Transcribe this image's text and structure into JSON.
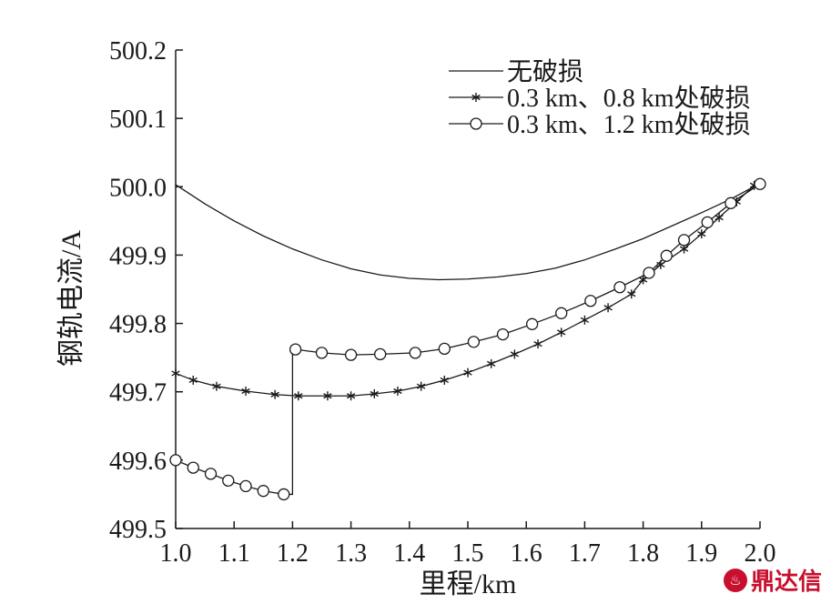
{
  "chart_data": {
    "type": "line",
    "title": "",
    "xlabel": "里程/km",
    "ylabel": "钢轨电流/A",
    "xlim": [
      1.0,
      2.0
    ],
    "ylim": [
      499.5,
      500.2
    ],
    "xticks": [
      "1.0",
      "1.1",
      "1.2",
      "1.3",
      "1.4",
      "1.5",
      "1.6",
      "1.7",
      "1.8",
      "1.9",
      "2.0"
    ],
    "yticks": [
      "499.5",
      "499.6",
      "499.7",
      "499.8",
      "499.9",
      "500.0",
      "500.1",
      "500.2"
    ],
    "legend_position": "top-right",
    "grid": false,
    "series": [
      {
        "name": "无破损",
        "marker": "none",
        "x": [
          1.0,
          1.05,
          1.1,
          1.15,
          1.2,
          1.25,
          1.3,
          1.35,
          1.4,
          1.45,
          1.5,
          1.55,
          1.6,
          1.65,
          1.7,
          1.75,
          1.8,
          1.85,
          1.9,
          1.95,
          2.0
        ],
        "y": [
          500.003,
          499.975,
          499.95,
          499.928,
          499.909,
          499.893,
          499.88,
          499.871,
          499.866,
          499.864,
          499.865,
          499.868,
          499.873,
          499.881,
          499.893,
          499.908,
          499.924,
          499.943,
          499.962,
          499.982,
          500.005
        ]
      },
      {
        "name": "0.3 km、0.8 km处破损",
        "marker": "asterisk",
        "x": [
          1.0,
          1.03,
          1.07,
          1.12,
          1.17,
          1.21,
          1.26,
          1.3,
          1.34,
          1.38,
          1.42,
          1.46,
          1.5,
          1.54,
          1.58,
          1.62,
          1.66,
          1.7,
          1.74,
          1.78,
          1.8,
          1.83,
          1.87,
          1.9,
          1.93,
          1.96,
          1.99,
          2.0
        ],
        "y": [
          499.727,
          499.717,
          499.708,
          499.701,
          499.696,
          499.694,
          499.694,
          499.694,
          499.697,
          499.701,
          499.708,
          499.717,
          499.728,
          499.741,
          499.755,
          499.77,
          499.787,
          499.805,
          499.823,
          499.843,
          499.864,
          499.886,
          499.909,
          499.931,
          499.955,
          499.978,
          500.002,
          500.005
        ]
      },
      {
        "name": "0.3 km、1.2 km处破损",
        "marker": "circle",
        "x": [
          1.0,
          1.03,
          1.06,
          1.09,
          1.12,
          1.15,
          1.185,
          1.205,
          1.25,
          1.3,
          1.35,
          1.41,
          1.46,
          1.51,
          1.56,
          1.61,
          1.66,
          1.71,
          1.76,
          1.81,
          1.84,
          1.87,
          1.91,
          1.95,
          2.0
        ],
        "y": [
          499.6,
          499.589,
          499.58,
          499.57,
          499.562,
          499.555,
          499.55,
          499.762,
          499.757,
          499.754,
          499.755,
          499.757,
          499.763,
          499.773,
          499.784,
          499.799,
          499.815,
          499.833,
          499.853,
          499.874,
          499.899,
          499.922,
          499.948,
          499.976,
          500.004
        ]
      }
    ]
  },
  "watermark": {
    "text": "鼎达信",
    "icon": "logo-icon"
  }
}
